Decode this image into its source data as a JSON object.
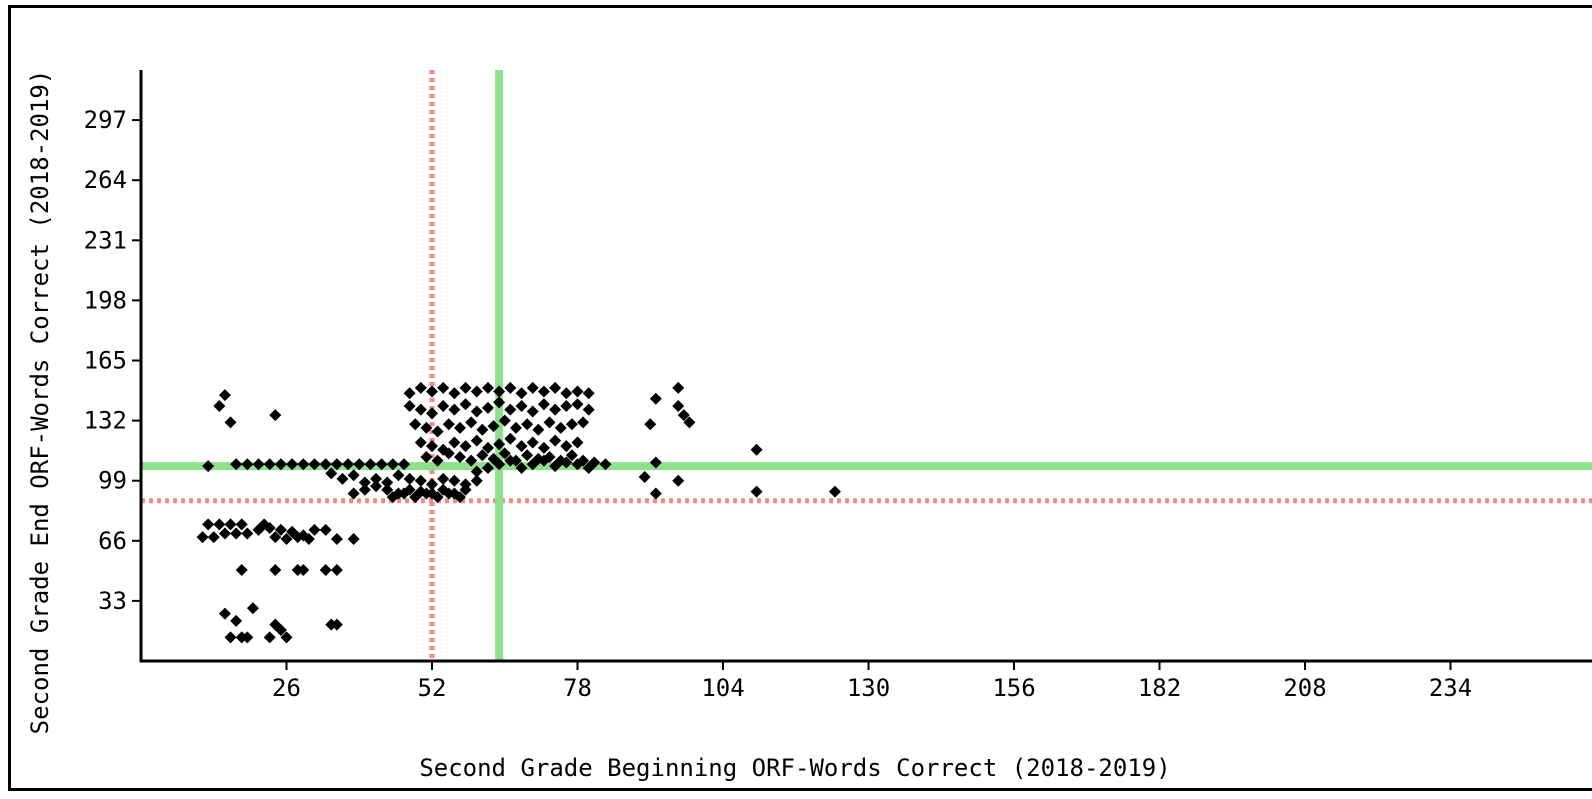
{
  "chart_data": {
    "type": "scatter",
    "title": "",
    "xlabel": "Second Grade Beginning ORF-Words Correct (2018-2019)",
    "ylabel": "Second Grade End ORF-Words Correct (2018-2019)",
    "xlim": [
      0,
      256
    ],
    "ylim": [
      0,
      323
    ],
    "x_ticks": [
      26,
      52,
      78,
      104,
      130,
      156,
      182,
      208,
      234
    ],
    "y_ticks": [
      33,
      66,
      99,
      132,
      165,
      198,
      231,
      264,
      297
    ],
    "grid": false,
    "reference_lines": [
      {
        "orientation": "vertical",
        "value": 52,
        "style": "dotted",
        "color": "#f28b82"
      },
      {
        "orientation": "horizontal",
        "value": 88,
        "style": "dotted",
        "color": "#f28b82"
      },
      {
        "orientation": "vertical",
        "value": 64,
        "style": "solid",
        "color": "#8fe08c"
      },
      {
        "orientation": "horizontal",
        "value": 107,
        "style": "solid",
        "color": "#8fe08c"
      }
    ],
    "marker": {
      "shape": "diamond",
      "color": "#000000"
    },
    "points": [
      [
        12,
        75
      ],
      [
        14,
        75
      ],
      [
        16,
        75
      ],
      [
        18,
        75
      ],
      [
        11,
        68
      ],
      [
        13,
        68
      ],
      [
        15,
        70
      ],
      [
        17,
        70
      ],
      [
        19,
        70
      ],
      [
        21,
        72
      ],
      [
        22,
        75
      ],
      [
        23,
        73
      ],
      [
        25,
        72
      ],
      [
        27,
        71
      ],
      [
        29,
        69
      ],
      [
        31,
        72
      ],
      [
        33,
        72
      ],
      [
        35,
        67
      ],
      [
        38,
        67
      ],
      [
        24,
        68
      ],
      [
        26,
        67
      ],
      [
        28,
        68
      ],
      [
        30,
        67
      ],
      [
        18,
        50
      ],
      [
        24,
        50
      ],
      [
        28,
        50
      ],
      [
        29,
        50
      ],
      [
        33,
        50
      ],
      [
        35,
        50
      ],
      [
        15,
        26
      ],
      [
        17,
        22
      ],
      [
        20,
        29
      ],
      [
        16,
        13
      ],
      [
        18,
        13
      ],
      [
        19,
        13
      ],
      [
        23,
        13
      ],
      [
        25,
        17
      ],
      [
        26,
        13
      ],
      [
        34,
        20
      ],
      [
        35,
        20
      ],
      [
        24,
        20
      ],
      [
        12,
        107
      ],
      [
        14,
        140
      ],
      [
        15,
        146
      ],
      [
        16,
        131
      ],
      [
        24,
        135
      ],
      [
        17,
        108
      ],
      [
        19,
        108
      ],
      [
        21,
        108
      ],
      [
        23,
        108
      ],
      [
        25,
        108
      ],
      [
        27,
        108
      ],
      [
        29,
        108
      ],
      [
        31,
        108
      ],
      [
        33,
        108
      ],
      [
        35,
        108
      ],
      [
        37,
        108
      ],
      [
        39,
        108
      ],
      [
        41,
        108
      ],
      [
        43,
        108
      ],
      [
        45,
        108
      ],
      [
        47,
        108
      ],
      [
        34,
        103
      ],
      [
        36,
        100
      ],
      [
        38,
        102
      ],
      [
        40,
        98
      ],
      [
        42,
        96
      ],
      [
        44,
        94
      ],
      [
        46,
        92
      ],
      [
        48,
        94
      ],
      [
        50,
        93
      ],
      [
        52,
        92
      ],
      [
        54,
        94
      ],
      [
        56,
        92
      ],
      [
        58,
        94
      ],
      [
        38,
        92
      ],
      [
        40,
        94
      ],
      [
        42,
        100
      ],
      [
        44,
        98
      ],
      [
        46,
        102
      ],
      [
        48,
        100
      ],
      [
        50,
        99
      ],
      [
        52,
        97
      ],
      [
        54,
        100
      ],
      [
        56,
        99
      ],
      [
        58,
        97
      ],
      [
        60,
        99
      ],
      [
        45,
        90
      ],
      [
        47,
        92
      ],
      [
        49,
        90
      ],
      [
        51,
        92
      ],
      [
        53,
        90
      ],
      [
        55,
        92
      ],
      [
        57,
        90
      ],
      [
        48,
        147
      ],
      [
        50,
        150
      ],
      [
        52,
        148
      ],
      [
        54,
        150
      ],
      [
        56,
        147
      ],
      [
        58,
        150
      ],
      [
        60,
        148
      ],
      [
        62,
        150
      ],
      [
        64,
        148
      ],
      [
        66,
        150
      ],
      [
        68,
        147
      ],
      [
        70,
        150
      ],
      [
        72,
        148
      ],
      [
        74,
        150
      ],
      [
        76,
        147
      ],
      [
        78,
        148
      ],
      [
        80,
        147
      ],
      [
        48,
        140
      ],
      [
        50,
        138
      ],
      [
        52,
        136
      ],
      [
        54,
        140
      ],
      [
        56,
        138
      ],
      [
        58,
        141
      ],
      [
        60,
        137
      ],
      [
        62,
        139
      ],
      [
        64,
        142
      ],
      [
        66,
        138
      ],
      [
        68,
        140
      ],
      [
        70,
        137
      ],
      [
        72,
        141
      ],
      [
        74,
        138
      ],
      [
        76,
        140
      ],
      [
        78,
        141
      ],
      [
        80,
        138
      ],
      [
        49,
        130
      ],
      [
        51,
        128
      ],
      [
        53,
        126
      ],
      [
        55,
        130
      ],
      [
        57,
        128
      ],
      [
        59,
        131
      ],
      [
        61,
        127
      ],
      [
        63,
        129
      ],
      [
        65,
        132
      ],
      [
        67,
        128
      ],
      [
        69,
        130
      ],
      [
        71,
        127
      ],
      [
        73,
        131
      ],
      [
        75,
        128
      ],
      [
        77,
        130
      ],
      [
        79,
        131
      ],
      [
        50,
        120
      ],
      [
        52,
        118
      ],
      [
        54,
        116
      ],
      [
        56,
        120
      ],
      [
        58,
        118
      ],
      [
        60,
        121
      ],
      [
        62,
        117
      ],
      [
        64,
        119
      ],
      [
        66,
        122
      ],
      [
        68,
        118
      ],
      [
        70,
        120
      ],
      [
        72,
        117
      ],
      [
        74,
        121
      ],
      [
        76,
        118
      ],
      [
        78,
        120
      ],
      [
        51,
        112
      ],
      [
        53,
        110
      ],
      [
        55,
        114
      ],
      [
        57,
        112
      ],
      [
        59,
        110
      ],
      [
        61,
        113
      ],
      [
        63,
        111
      ],
      [
        65,
        114
      ],
      [
        67,
        110
      ],
      [
        69,
        113
      ],
      [
        71,
        111
      ],
      [
        73,
        112
      ],
      [
        75,
        110
      ],
      [
        77,
        113
      ],
      [
        79,
        110
      ],
      [
        81,
        109
      ],
      [
        83,
        108
      ],
      [
        60,
        104
      ],
      [
        62,
        106
      ],
      [
        64,
        108
      ],
      [
        66,
        110
      ],
      [
        68,
        106
      ],
      [
        70,
        108
      ],
      [
        72,
        110
      ],
      [
        74,
        107
      ],
      [
        76,
        109
      ],
      [
        78,
        108
      ],
      [
        80,
        106
      ],
      [
        92,
        144
      ],
      [
        91,
        130
      ],
      [
        96,
        140
      ],
      [
        97,
        135
      ],
      [
        98,
        131
      ],
      [
        96,
        150
      ],
      [
        92,
        109
      ],
      [
        90,
        101
      ],
      [
        92,
        92
      ],
      [
        96,
        99
      ],
      [
        110,
        116
      ],
      [
        110,
        93
      ],
      [
        124,
        93
      ]
    ]
  }
}
